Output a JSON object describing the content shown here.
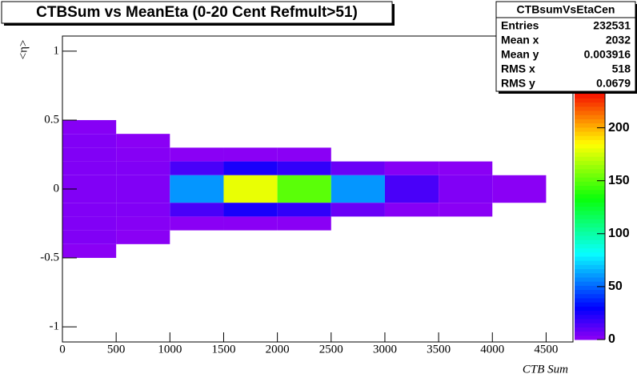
{
  "chart_data": {
    "type": "heatmap",
    "title": "CTBSum vs MeanEta (0-20 Cent Refmult>51)",
    "x_label": "CTB Sum",
    "y_label": "<η>",
    "xlim": [
      0,
      4750
    ],
    "ylim": [
      -1.11,
      1.11
    ],
    "xticks": [
      0,
      500,
      1000,
      1500,
      2000,
      2500,
      3000,
      3500,
      4000,
      4500
    ],
    "yticks": [
      -1,
      -0.5,
      0,
      0.5,
      1
    ],
    "zlim": [
      0,
      236
    ],
    "zticks": [
      0,
      50,
      100,
      150,
      200
    ],
    "x_edges": [
      0,
      500,
      1000,
      1500,
      2000,
      2500,
      3000,
      3500,
      4000,
      4500,
      4750
    ],
    "y_edges": [
      0.5,
      0.4,
      0.3,
      0.2,
      0.1,
      0,
      -0.1,
      -0.2,
      -0.3,
      -0.4,
      -0.5
    ],
    "z": [
      [
        2,
        0,
        0,
        0,
        0,
        0,
        0,
        0,
        0,
        0
      ],
      [
        3,
        1,
        0,
        0,
        0,
        0,
        0,
        0,
        0,
        0
      ],
      [
        3,
        2,
        1,
        1,
        1,
        0,
        0,
        0,
        0,
        0
      ],
      [
        3,
        3,
        15,
        25,
        20,
        8,
        2,
        1,
        0,
        0
      ],
      [
        3,
        3,
        60,
        180,
        150,
        60,
        15,
        3,
        1,
        0
      ],
      [
        3,
        3,
        60,
        180,
        150,
        60,
        15,
        3,
        1,
        0
      ],
      [
        3,
        3,
        15,
        25,
        20,
        8,
        2,
        1,
        0,
        0
      ],
      [
        3,
        2,
        1,
        1,
        1,
        0,
        0,
        0,
        0,
        0
      ],
      [
        3,
        1,
        0,
        0,
        0,
        0,
        0,
        0,
        0,
        0
      ],
      [
        1,
        0,
        0,
        0,
        0,
        0,
        0,
        0,
        0,
        0
      ]
    ],
    "stats": {
      "title": "CTBsumVsEtaCen",
      "rows": [
        {
          "label": "Entries",
          "value": 232531
        },
        {
          "label": "Mean x",
          "value": 2032
        },
        {
          "label": "Mean y",
          "value": 0.003916
        },
        {
          "label": "RMS x",
          "value": 518
        },
        {
          "label": "RMS y",
          "value": 0.0679
        }
      ]
    }
  }
}
